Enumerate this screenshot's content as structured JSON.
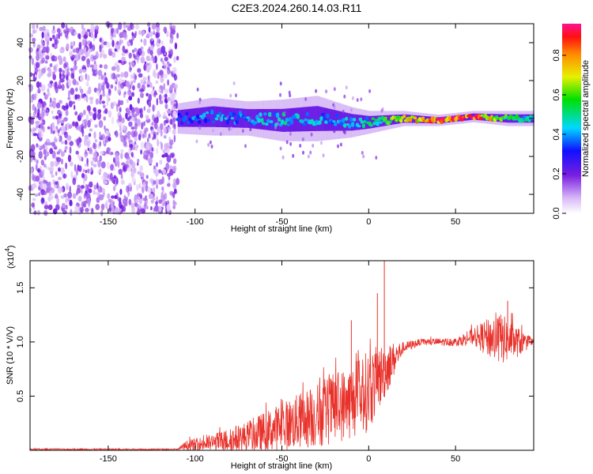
{
  "title": "C2E3.2024.260.14.03.R11",
  "chart_data": [
    {
      "type": "heatmap",
      "name": "spectrogram",
      "xlabel": "Height of straight line (km)",
      "ylabel": "Frequency (Hz)",
      "xlim": [
        -195,
        95
      ],
      "ylim": [
        -50,
        50
      ],
      "x_ticks": [
        -150,
        -100,
        -50,
        0,
        50
      ],
      "x_tick_labels": [
        "-150",
        "-100",
        "-50",
        "0",
        "50"
      ],
      "y_ticks": [
        -40,
        -20,
        0,
        20,
        40
      ],
      "y_tick_labels": [
        "-40",
        "-20",
        "0",
        "20",
        "40"
      ],
      "noise_region_x": [
        -195,
        -110
      ],
      "signal_band": [
        {
          "x": -110,
          "center": 0,
          "halfwidth": 8,
          "amp": 0.35
        },
        {
          "x": -90,
          "center": 1,
          "halfwidth": 10,
          "amp": 0.45
        },
        {
          "x": -70,
          "center": 0,
          "halfwidth": 9,
          "amp": 0.45
        },
        {
          "x": -50,
          "center": -1,
          "halfwidth": 11,
          "amp": 0.5
        },
        {
          "x": -30,
          "center": 0,
          "halfwidth": 12,
          "amp": 0.45
        },
        {
          "x": -10,
          "center": -2,
          "halfwidth": 8,
          "amp": 0.45
        },
        {
          "x": 0,
          "center": -2,
          "halfwidth": 6,
          "amp": 0.5
        },
        {
          "x": 20,
          "center": 0,
          "halfwidth": 4,
          "amp": 0.75
        },
        {
          "x": 40,
          "center": -1,
          "halfwidth": 3,
          "amp": 0.9
        },
        {
          "x": 60,
          "center": 1,
          "halfwidth": 3,
          "amp": 0.95
        },
        {
          "x": 80,
          "center": 0,
          "halfwidth": 4,
          "amp": 0.6
        },
        {
          "x": 95,
          "center": 0,
          "halfwidth": 4,
          "amp": 0.5
        }
      ]
    },
    {
      "type": "line",
      "name": "snr",
      "xlabel": "Height of straight line (km)",
      "ylabel": "SNR (10 * V/V)",
      "scale_label": "(x10",
      "scale_exponent": "4",
      "xlim": [
        -195,
        95
      ],
      "ylim": [
        0,
        1.75
      ],
      "x_ticks": [
        -150,
        -100,
        -50,
        0,
        50
      ],
      "x_tick_labels": [
        "-150",
        "-100",
        "-50",
        "0",
        "50"
      ],
      "y_ticks": [
        0.5,
        1.0,
        1.5
      ],
      "y_tick_labels": [
        "0.5",
        "1.0",
        "1.5"
      ],
      "color": "#e8312a",
      "envelope": [
        {
          "x": -195,
          "mean": 0.01,
          "spread": 0.005
        },
        {
          "x": -110,
          "mean": 0.01,
          "spread": 0.005
        },
        {
          "x": -105,
          "mean": 0.04,
          "spread": 0.05
        },
        {
          "x": -90,
          "mean": 0.07,
          "spread": 0.08
        },
        {
          "x": -70,
          "mean": 0.12,
          "spread": 0.15
        },
        {
          "x": -50,
          "mean": 0.22,
          "spread": 0.22
        },
        {
          "x": -30,
          "mean": 0.32,
          "spread": 0.3
        },
        {
          "x": -10,
          "mean": 0.45,
          "spread": 0.35
        },
        {
          "x": 0,
          "mean": 0.55,
          "spread": 0.38
        },
        {
          "x": 10,
          "mean": 0.75,
          "spread": 0.25
        },
        {
          "x": 20,
          "mean": 0.95,
          "spread": 0.05
        },
        {
          "x": 30,
          "mean": 1.0,
          "spread": 0.03
        },
        {
          "x": 50,
          "mean": 1.0,
          "spread": 0.04
        },
        {
          "x": 60,
          "mean": 1.05,
          "spread": 0.08
        },
        {
          "x": 75,
          "mean": 1.03,
          "spread": 0.25
        },
        {
          "x": 85,
          "mean": 1.0,
          "spread": 0.15
        },
        {
          "x": 95,
          "mean": 0.99,
          "spread": 0.02
        }
      ],
      "peaks": [
        {
          "x": 9,
          "y": 1.75
        },
        {
          "x": 5,
          "y": 1.45
        },
        {
          "x": -10,
          "y": 1.2
        },
        {
          "x": 80,
          "y": 1.38
        }
      ]
    }
  ],
  "colorbar": {
    "label": "Normalized spectral amplitude",
    "ticks": [
      0.0,
      0.2,
      0.4,
      0.6,
      0.8
    ],
    "tick_labels": [
      "0.0",
      "0.2",
      "0.4",
      "0.6",
      "0.8"
    ],
    "range": [
      0,
      0.96
    ]
  }
}
